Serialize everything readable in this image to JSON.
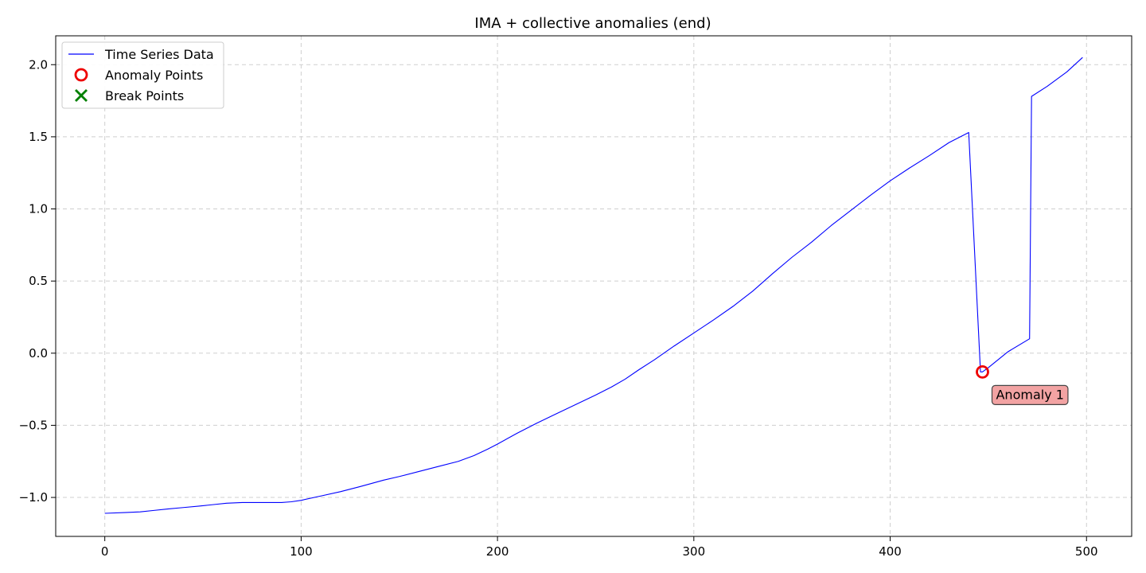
{
  "chart_data": {
    "type": "line",
    "title": "IMA + collective anomalies (end)",
    "xlabel": "",
    "ylabel": "",
    "xlim": [
      -25,
      523
    ],
    "ylim": [
      -1.27,
      2.2
    ],
    "xticks": [
      0,
      100,
      200,
      300,
      400,
      500
    ],
    "xtick_labels": [
      "0",
      "100",
      "200",
      "300",
      "400",
      "500"
    ],
    "yticks": [
      -1.0,
      -0.5,
      0.0,
      0.5,
      1.0,
      1.5,
      2.0
    ],
    "ytick_labels": [
      "−1.0",
      "−0.5",
      "0.0",
      "0.5",
      "1.0",
      "1.5",
      "2.0"
    ],
    "grid": true,
    "legend_position": "upper-left",
    "legend": [
      {
        "label": "Time Series Data",
        "marker": "line",
        "color": "#0000ff"
      },
      {
        "label": "Anomaly Points",
        "marker": "circle",
        "color": "#ee0000"
      },
      {
        "label": "Break Points",
        "marker": "x",
        "color": "#008000"
      }
    ],
    "series": [
      {
        "name": "Time Series Data",
        "color": "#0000ff",
        "x": [
          0,
          10,
          18,
          25,
          32,
          40,
          48,
          55,
          62,
          70,
          80,
          90,
          95,
          100,
          110,
          120,
          130,
          142,
          150,
          160,
          170,
          180,
          188,
          195,
          200,
          210,
          220,
          230,
          240,
          250,
          258,
          265,
          272,
          280,
          290,
          300,
          310,
          320,
          330,
          340,
          350,
          360,
          370,
          380,
          390,
          400,
          410,
          420,
          430,
          440,
          446,
          447,
          450,
          460,
          471,
          472,
          480,
          490,
          498
        ],
        "y": [
          -1.11,
          -1.105,
          -1.1,
          -1.09,
          -1.08,
          -1.07,
          -1.06,
          -1.05,
          -1.04,
          -1.035,
          -1.035,
          -1.035,
          -1.03,
          -1.02,
          -0.99,
          -0.96,
          -0.925,
          -0.88,
          -0.855,
          -0.82,
          -0.785,
          -0.75,
          -0.71,
          -0.665,
          -0.63,
          -0.555,
          -0.485,
          -0.42,
          -0.355,
          -0.29,
          -0.235,
          -0.18,
          -0.115,
          -0.045,
          0.05,
          0.14,
          0.23,
          0.325,
          0.43,
          0.55,
          0.665,
          0.77,
          0.885,
          0.99,
          1.095,
          1.195,
          1.285,
          1.37,
          1.46,
          1.53,
          -0.13,
          -0.13,
          -0.1,
          0.01,
          0.1,
          1.78,
          1.85,
          1.95,
          2.05
        ]
      }
    ],
    "anomaly_points": [
      {
        "x": 447,
        "y": -0.13
      }
    ],
    "break_points": [],
    "annotations": [
      {
        "text": "Anomaly 1",
        "x": 447,
        "y": -0.13
      }
    ]
  }
}
